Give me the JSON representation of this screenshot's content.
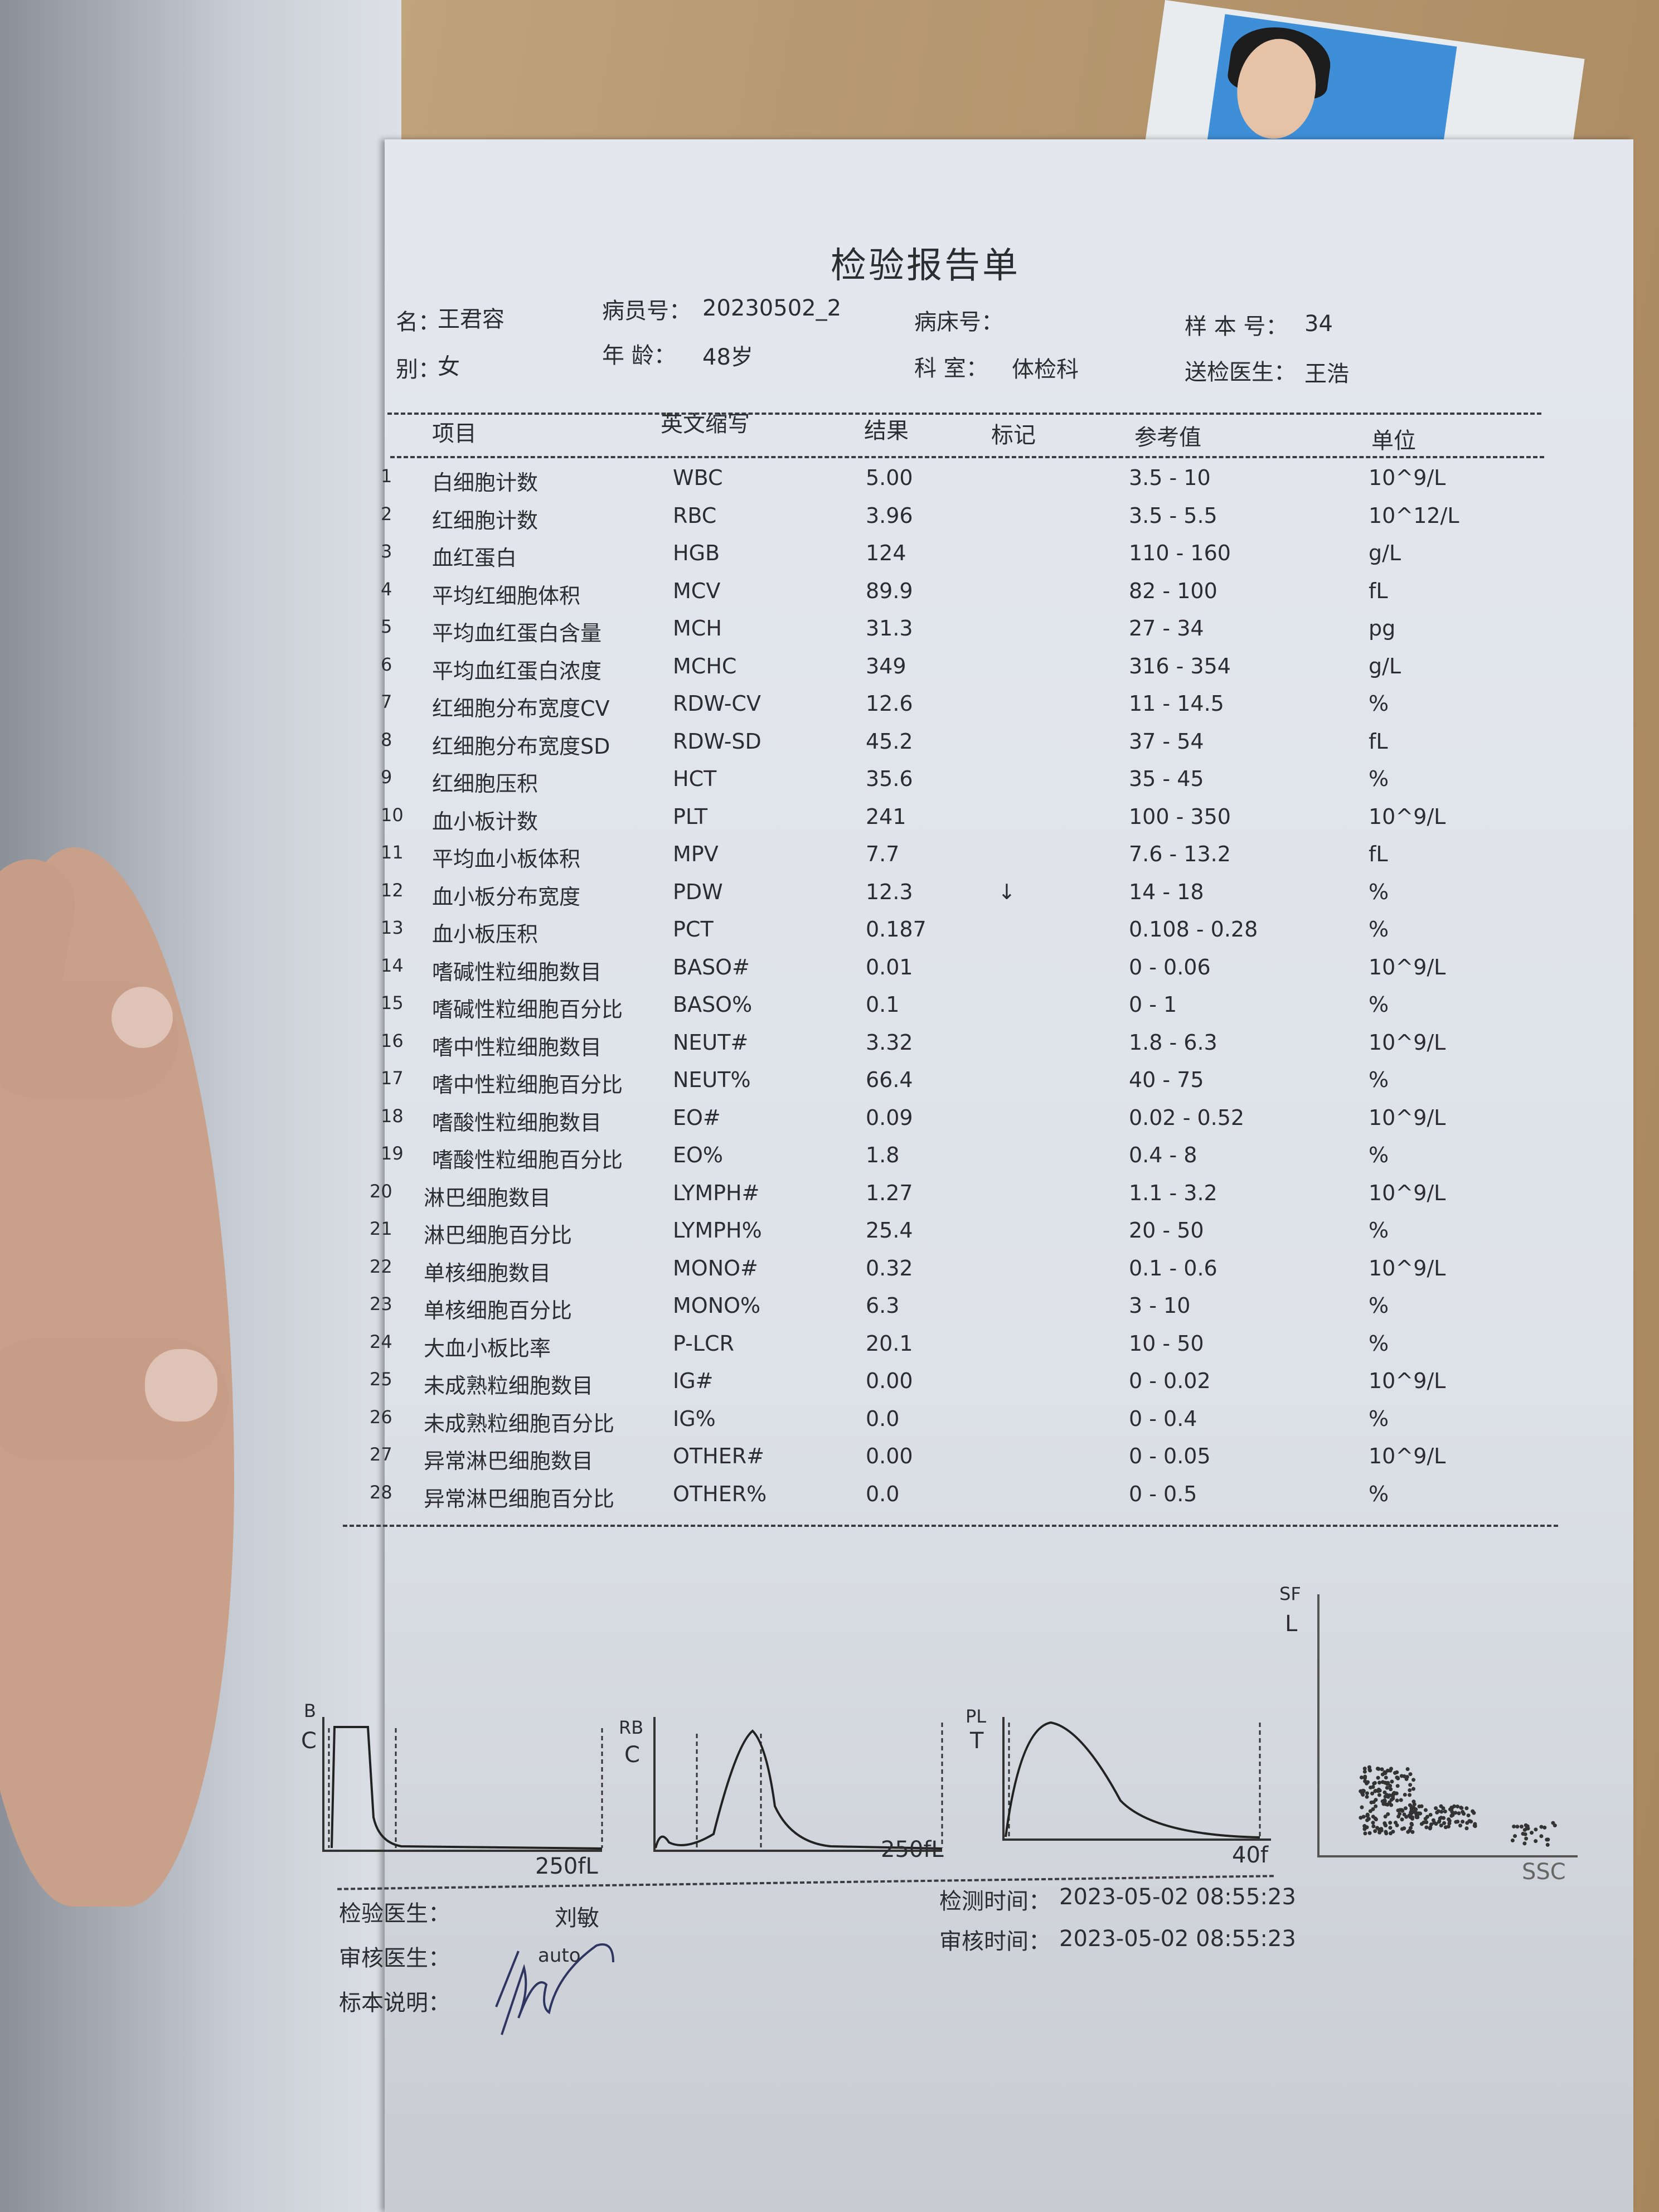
{
  "report": {
    "title": "检验报告单",
    "header": {
      "name_label": "名：",
      "name": "王君容",
      "patient_no_label": "病员号：",
      "patient_no": "20230502_2",
      "bed_no_label": "病床号：",
      "bed_no": "",
      "sample_no_label": "样 本 号：",
      "sample_no": "34",
      "sex_label": "别：",
      "sex": "女",
      "age_label": "年  龄：",
      "age": "48岁",
      "dept_label": "科  室：",
      "dept": "体检科",
      "doctor_label": "送检医生：",
      "doctor": "王浩"
    },
    "columns": [
      "项目",
      "英文缩写",
      "结果",
      "标记",
      "参考值",
      "单位"
    ],
    "rows": [
      {
        "no": "1",
        "name": "白细胞计数",
        "abbr": "WBC",
        "result": "5.00",
        "flag": "",
        "ref": "3.5 - 10",
        "unit": "10^9/L"
      },
      {
        "no": "2",
        "name": "红细胞计数",
        "abbr": "RBC",
        "result": "3.96",
        "flag": "",
        "ref": "3.5 - 5.5",
        "unit": "10^12/L"
      },
      {
        "no": "3",
        "name": "血红蛋白",
        "abbr": "HGB",
        "result": "124",
        "flag": "",
        "ref": "110 - 160",
        "unit": "g/L"
      },
      {
        "no": "4",
        "name": "平均红细胞体积",
        "abbr": "MCV",
        "result": "89.9",
        "flag": "",
        "ref": "82 - 100",
        "unit": "fL"
      },
      {
        "no": "5",
        "name": "平均血红蛋白含量",
        "abbr": "MCH",
        "result": "31.3",
        "flag": "",
        "ref": "27 - 34",
        "unit": "pg"
      },
      {
        "no": "6",
        "name": "平均血红蛋白浓度",
        "abbr": "MCHC",
        "result": "349",
        "flag": "",
        "ref": "316 - 354",
        "unit": "g/L"
      },
      {
        "no": "7",
        "name": "红细胞分布宽度CV",
        "abbr": "RDW-CV",
        "result": "12.6",
        "flag": "",
        "ref": "11 - 14.5",
        "unit": "%"
      },
      {
        "no": "8",
        "name": "红细胞分布宽度SD",
        "abbr": "RDW-SD",
        "result": "45.2",
        "flag": "",
        "ref": "37 - 54",
        "unit": "fL"
      },
      {
        "no": "9",
        "name": "红细胞压积",
        "abbr": "HCT",
        "result": "35.6",
        "flag": "",
        "ref": "35 - 45",
        "unit": "%"
      },
      {
        "no": "10",
        "name": "血小板计数",
        "abbr": "PLT",
        "result": "241",
        "flag": "",
        "ref": "100 - 350",
        "unit": "10^9/L"
      },
      {
        "no": "11",
        "name": "平均血小板体积",
        "abbr": "MPV",
        "result": "7.7",
        "flag": "",
        "ref": "7.6 - 13.2",
        "unit": "fL"
      },
      {
        "no": "12",
        "name": "血小板分布宽度",
        "abbr": "PDW",
        "result": "12.3",
        "flag": "↓",
        "ref": "14 - 18",
        "unit": "%"
      },
      {
        "no": "13",
        "name": "血小板压积",
        "abbr": "PCT",
        "result": "0.187",
        "flag": "",
        "ref": "0.108 - 0.28",
        "unit": "%"
      },
      {
        "no": "14",
        "name": "嗜碱性粒细胞数目",
        "abbr": "BASO#",
        "result": "0.01",
        "flag": "",
        "ref": "0 - 0.06",
        "unit": "10^9/L"
      },
      {
        "no": "15",
        "name": "嗜碱性粒细胞百分比",
        "abbr": "BASO%",
        "result": "0.1",
        "flag": "",
        "ref": "0 - 1",
        "unit": "%"
      },
      {
        "no": "16",
        "name": "嗜中性粒细胞数目",
        "abbr": "NEUT#",
        "result": "3.32",
        "flag": "",
        "ref": "1.8 - 6.3",
        "unit": "10^9/L"
      },
      {
        "no": "17",
        "name": "嗜中性粒细胞百分比",
        "abbr": "NEUT%",
        "result": "66.4",
        "flag": "",
        "ref": "40 - 75",
        "unit": "%"
      },
      {
        "no": "18",
        "name": "嗜酸性粒细胞数目",
        "abbr": "EO#",
        "result": "0.09",
        "flag": "",
        "ref": "0.02 - 0.52",
        "unit": "10^9/L"
      },
      {
        "no": "19",
        "name": "嗜酸性粒细胞百分比",
        "abbr": "EO%",
        "result": "1.8",
        "flag": "",
        "ref": "0.4 - 8",
        "unit": "%"
      },
      {
        "no": "20",
        "name": "淋巴细胞数目",
        "abbr": "LYMPH#",
        "result": "1.27",
        "flag": "",
        "ref": "1.1 - 3.2",
        "unit": "10^9/L"
      },
      {
        "no": "21",
        "name": "淋巴细胞百分比",
        "abbr": "LYMPH%",
        "result": "25.4",
        "flag": "",
        "ref": "20 - 50",
        "unit": "%"
      },
      {
        "no": "22",
        "name": "单核细胞数目",
        "abbr": "MONO#",
        "result": "0.32",
        "flag": "",
        "ref": "0.1 - 0.6",
        "unit": "10^9/L"
      },
      {
        "no": "23",
        "name": "单核细胞百分比",
        "abbr": "MONO%",
        "result": "6.3",
        "flag": "",
        "ref": "3 - 10",
        "unit": "%"
      },
      {
        "no": "24",
        "name": "大血小板比率",
        "abbr": "P-LCR",
        "result": "20.1",
        "flag": "",
        "ref": "10 - 50",
        "unit": "%"
      },
      {
        "no": "25",
        "name": "未成熟粒细胞数目",
        "abbr": "IG#",
        "result": "0.00",
        "flag": "",
        "ref": "0 - 0.02",
        "unit": "10^9/L"
      },
      {
        "no": "26",
        "name": "未成熟粒细胞百分比",
        "abbr": "IG%",
        "result": "0.0",
        "flag": "",
        "ref": "0 - 0.4",
        "unit": "%"
      },
      {
        "no": "27",
        "name": "异常淋巴细胞数目",
        "abbr": "OTHER#",
        "result": "0.00",
        "flag": "",
        "ref": "0 - 0.05",
        "unit": "10^9/L"
      },
      {
        "no": "28",
        "name": "异常淋巴细胞百分比",
        "abbr": "OTHER%",
        "result": "0.0",
        "flag": "",
        "ref": "0 - 0.5",
        "unit": "%"
      }
    ],
    "charts": {
      "wbc": {
        "label_top": "B",
        "label": "C",
        "axis_end": "250fL"
      },
      "rbc": {
        "label_top": "RB",
        "label": "C",
        "axis_end": "250fL"
      },
      "plt": {
        "label_top": "PL",
        "label": "T",
        "axis_end": "40f"
      },
      "scatter": {
        "y_label_top": "SF",
        "y_label": "L",
        "x_label": "SSC"
      }
    },
    "footer": {
      "tester_label": "检验医生：",
      "tester": "刘敏",
      "reviewer_label": "审核医生：",
      "reviewer": "auto",
      "note_label": "标本说明：",
      "test_time_label": "检测时间：",
      "test_time": "2023-05-02 08:55:23",
      "review_time_label": "审核时间：",
      "review_time": "2023-05-02 08:55:23"
    }
  }
}
